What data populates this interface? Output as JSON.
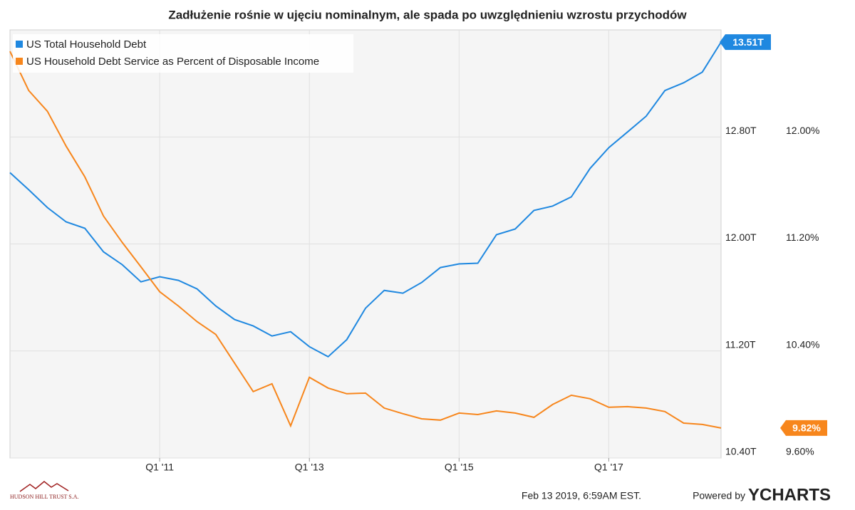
{
  "chart_data": {
    "type": "line",
    "title": "Zadłużenie rośnie w ujęciu nominalnym, ale spada po uwzględnieniu wzrostu przychodów",
    "categories": [
      null,
      null,
      null,
      null,
      null,
      null,
      null,
      null,
      "Q1 '11",
      null,
      null,
      null,
      null,
      null,
      null,
      null,
      "Q1 '13",
      null,
      null,
      null,
      null,
      null,
      null,
      null,
      "Q1 '15",
      null,
      null,
      null,
      null,
      null,
      null,
      null,
      "Q1 '17",
      null,
      null,
      null,
      null,
      null,
      null
    ],
    "series": [
      {
        "name": "US Total Household Debt",
        "color": "#1f88e0",
        "values": [
          12.533,
          12.405,
          12.272,
          12.165,
          12.117,
          11.941,
          11.845,
          11.717,
          11.755,
          11.728,
          11.664,
          11.536,
          11.435,
          11.387,
          11.312,
          11.344,
          11.232,
          11.157,
          11.285,
          11.52,
          11.653,
          11.632,
          11.712,
          11.824,
          11.851,
          11.856,
          12.069,
          12.112,
          12.251,
          12.283,
          12.352,
          12.565,
          12.72,
          12.837,
          12.955,
          13.147,
          13.205,
          13.285,
          13.509
        ],
        "value_labels": [
          null,
          null,
          null,
          null,
          null,
          null,
          null,
          null,
          null,
          null,
          null,
          null,
          null,
          null,
          null,
          null,
          null,
          null,
          null,
          null,
          null,
          null,
          null,
          null,
          null,
          null,
          null,
          null,
          null,
          null,
          null,
          null,
          null,
          null,
          null,
          null,
          null,
          null,
          "13.51T"
        ]
      },
      {
        "name": "US Household Debt Service as Percent of Disposable Income",
        "color": "#f7861c",
        "axis": "y2",
        "values": [
          12.64,
          12.347,
          12.192,
          11.931,
          11.701,
          11.408,
          11.211,
          11.029,
          10.843,
          10.736,
          10.619,
          10.523,
          10.309,
          10.096,
          10.155,
          9.84,
          10.203,
          10.123,
          10.08,
          10.085,
          9.973,
          9.931,
          9.893,
          9.883,
          9.936,
          9.925,
          9.952,
          9.936,
          9.904,
          10.0,
          10.069,
          10.043,
          9.979,
          9.984,
          9.973,
          9.947,
          9.861,
          9.851,
          9.824
        ],
        "value_labels": [
          null,
          null,
          null,
          null,
          null,
          null,
          null,
          null,
          null,
          null,
          null,
          null,
          null,
          null,
          null,
          null,
          null,
          null,
          null,
          null,
          null,
          null,
          null,
          null,
          null,
          null,
          null,
          null,
          null,
          null,
          null,
          null,
          null,
          null,
          null,
          null,
          null,
          null,
          "9.82%"
        ]
      }
    ],
    "ylim": [
      10.4,
      13.6
    ],
    "yticks": [
      {
        "value": 10.4,
        "label": "10.40T"
      },
      {
        "value": 11.2,
        "label": "11.20T"
      },
      {
        "value": 12.0,
        "label": "12.00T"
      },
      {
        "value": 12.8,
        "label": "12.80T"
      }
    ],
    "y2lim": [
      9.6,
      12.8
    ],
    "y2ticks": [
      {
        "value": 9.6,
        "label": "9.60%"
      },
      {
        "value": 10.4,
        "label": "10.40%"
      },
      {
        "value": 11.2,
        "label": "11.20%"
      },
      {
        "value": 12.0,
        "label": "12.00%"
      }
    ],
    "grid": true,
    "legend": "top-left"
  },
  "footer": {
    "logo": "HUDSON HILL TRUST S.A.",
    "timestamp": "Feb 13 2019, 6:59AM EST.",
    "powered": "Powered by",
    "brand": "YCHARTS"
  }
}
